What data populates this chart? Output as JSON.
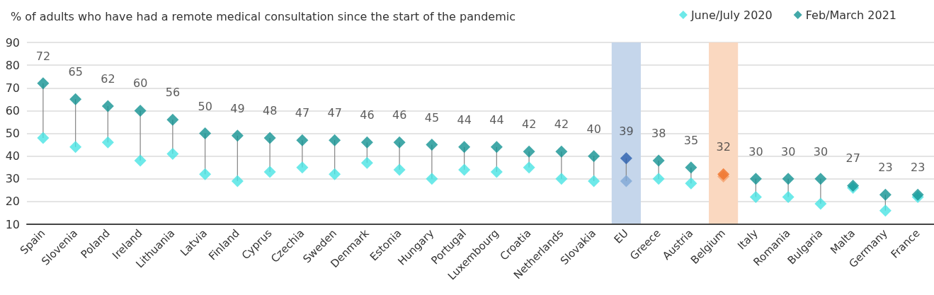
{
  "chart_data": {
    "type": "scatter",
    "title": "% of adults who have had a remote medical consultation since the start of the pandemic",
    "categories": [
      "Spain",
      "Slovenia",
      "Poland",
      "Ireland",
      "Lithuania",
      "Latvia",
      "Finland",
      "Cyprus",
      "Czechia",
      "Sweden",
      "Denmark",
      "Estonia",
      "Hungary",
      "Portugal",
      "Luxembourg",
      "Croatia",
      "Netherlands",
      "Slovakia",
      "EU",
      "Greece",
      "Austria",
      "Belgium",
      "Italy",
      "Romania",
      "Bulgaria",
      "Malta",
      "Germany",
      "France"
    ],
    "series": [
      {
        "name": "June/July 2020",
        "color": "#48e3e3",
        "values": [
          48,
          44,
          46,
          38,
          41,
          32,
          29,
          33,
          35,
          32,
          37,
          34,
          30,
          34,
          33,
          35,
          30,
          29,
          29,
          30,
          28,
          31,
          22,
          22,
          19,
          26,
          16,
          22
        ],
        "colors": [
          "#48e3e3",
          "#48e3e3",
          "#48e3e3",
          "#48e3e3",
          "#48e3e3",
          "#48e3e3",
          "#48e3e3",
          "#48e3e3",
          "#48e3e3",
          "#48e3e3",
          "#48e3e3",
          "#48e3e3",
          "#48e3e3",
          "#48e3e3",
          "#48e3e3",
          "#48e3e3",
          "#48e3e3",
          "#48e3e3",
          "#80a8d6",
          "#48e3e3",
          "#48e3e3",
          "#f4a06c",
          "#48e3e3",
          "#48e3e3",
          "#48e3e3",
          "#48e3e3",
          "#48e3e3",
          "#48e3e3"
        ]
      },
      {
        "name": "Feb/March 2021",
        "color": "#139292",
        "values": [
          72,
          65,
          62,
          60,
          56,
          50,
          49,
          48,
          47,
          47,
          46,
          46,
          45,
          44,
          44,
          42,
          42,
          40,
          39,
          38,
          35,
          32,
          30,
          30,
          30,
          27,
          23,
          23
        ],
        "colors": [
          "#139292",
          "#139292",
          "#139292",
          "#139292",
          "#139292",
          "#139292",
          "#139292",
          "#139292",
          "#139292",
          "#139292",
          "#139292",
          "#139292",
          "#139292",
          "#139292",
          "#139292",
          "#139292",
          "#139292",
          "#139292",
          "#2a5fae",
          "#139292",
          "#139292",
          "#f07228",
          "#139292",
          "#139292",
          "#139292",
          "#139292",
          "#139292",
          "#139292"
        ],
        "value_labels": [
          "72",
          "65",
          "62",
          "60",
          "56",
          "50",
          "49",
          "48",
          "47",
          "47",
          "46",
          "46",
          "45",
          "44",
          "44",
          "42",
          "42",
          "40",
          "39",
          "38",
          "35",
          "32",
          "30",
          "30",
          "30",
          "27",
          "23",
          "23"
        ]
      }
    ],
    "ylim": [
      10,
      90
    ],
    "yticks": [
      10,
      20,
      30,
      40,
      50,
      60,
      70,
      80,
      90
    ],
    "grid": "y",
    "legend": "top right",
    "marker": "diamond",
    "bands": [
      {
        "axis": "x",
        "from": "EU",
        "to": "EU",
        "color": "#c5d6eb"
      },
      {
        "axis": "x",
        "from": "Belgium",
        "to": "Belgium",
        "color": "#fad8c0"
      }
    ]
  }
}
